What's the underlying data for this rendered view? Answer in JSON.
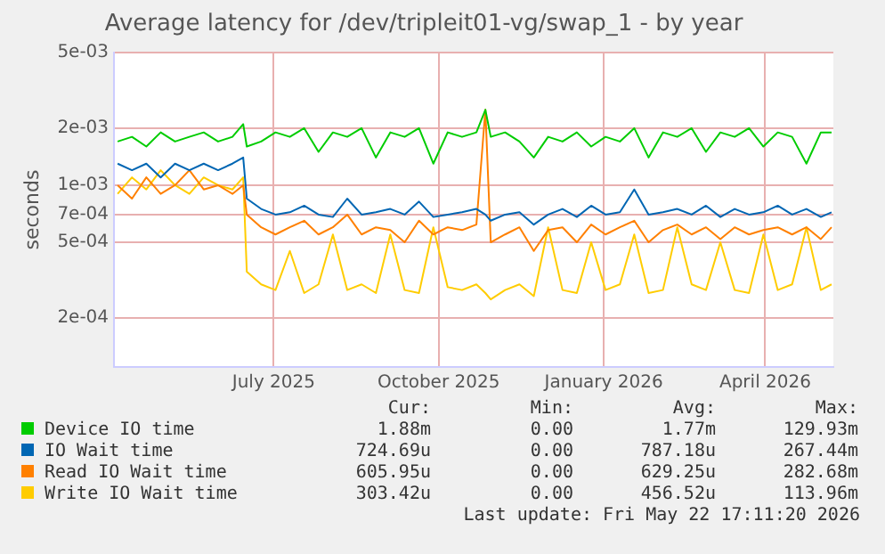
{
  "chart_data": {
    "type": "line",
    "title": "Average latency for /dev/tripleit01-vg/swap_1 - by year",
    "ylabel": "seconds",
    "x": [
      "2025-04-05",
      "2025-04-13",
      "2025-04-21",
      "2025-04-29",
      "2025-05-07",
      "2025-05-15",
      "2025-05-23",
      "2025-05-31",
      "2025-06-08",
      "2025-06-14",
      "2025-06-16",
      "2025-06-24",
      "2025-07-02",
      "2025-07-10",
      "2025-07-18",
      "2025-07-26",
      "2025-08-03",
      "2025-08-11",
      "2025-08-19",
      "2025-08-27",
      "2025-09-04",
      "2025-09-12",
      "2025-09-20",
      "2025-09-28",
      "2025-10-06",
      "2025-10-14",
      "2025-10-22",
      "2025-10-27",
      "2025-10-30",
      "2025-11-07",
      "2025-11-15",
      "2025-11-23",
      "2025-12-01",
      "2025-12-09",
      "2025-12-17",
      "2025-12-25",
      "2026-01-02",
      "2026-01-10",
      "2026-01-18",
      "2026-01-26",
      "2026-02-03",
      "2026-02-11",
      "2026-02-19",
      "2026-02-27",
      "2026-03-07",
      "2026-03-15",
      "2026-03-23",
      "2026-03-31",
      "2026-04-08",
      "2026-04-16",
      "2026-04-24",
      "2026-05-02",
      "2026-05-08"
    ],
    "series": [
      {
        "name": "Device IO time",
        "color": "#00cc00",
        "values": [
          0.0017,
          0.0018,
          0.0016,
          0.0019,
          0.0017,
          0.0018,
          0.0019,
          0.0017,
          0.0018,
          0.0021,
          0.0016,
          0.0017,
          0.0019,
          0.0018,
          0.002,
          0.0015,
          0.0019,
          0.0018,
          0.002,
          0.0014,
          0.0019,
          0.0018,
          0.002,
          0.0013,
          0.0019,
          0.0018,
          0.0019,
          0.0025,
          0.0018,
          0.0019,
          0.0017,
          0.0014,
          0.0018,
          0.0017,
          0.0019,
          0.0016,
          0.0018,
          0.0017,
          0.002,
          0.0014,
          0.0019,
          0.0018,
          0.002,
          0.0015,
          0.0019,
          0.0018,
          0.002,
          0.0016,
          0.0019,
          0.0018,
          0.0013,
          0.0019,
          0.0019
        ]
      },
      {
        "name": "IO Wait time",
        "color": "#0066b3",
        "values": [
          0.0013,
          0.0012,
          0.0013,
          0.0011,
          0.0013,
          0.0012,
          0.0013,
          0.0012,
          0.0013,
          0.0014,
          0.00085,
          0.00075,
          0.0007,
          0.00072,
          0.00078,
          0.0007,
          0.00068,
          0.00085,
          0.0007,
          0.00072,
          0.00075,
          0.0007,
          0.00082,
          0.00068,
          0.0007,
          0.00072,
          0.00075,
          0.0007,
          0.00065,
          0.0007,
          0.00072,
          0.00062,
          0.0007,
          0.00075,
          0.00068,
          0.00078,
          0.0007,
          0.00072,
          0.00095,
          0.0007,
          0.00072,
          0.00075,
          0.0007,
          0.00078,
          0.00068,
          0.00075,
          0.0007,
          0.00072,
          0.00078,
          0.0007,
          0.00075,
          0.00068,
          0.00072
        ]
      },
      {
        "name": "Read IO Wait time",
        "color": "#ff8000",
        "values": [
          0.001,
          0.00085,
          0.0011,
          0.0009,
          0.001,
          0.0012,
          0.00095,
          0.001,
          0.0009,
          0.001,
          0.0007,
          0.0006,
          0.00055,
          0.0006,
          0.00065,
          0.00055,
          0.0006,
          0.0007,
          0.00055,
          0.0006,
          0.00058,
          0.0005,
          0.00065,
          0.00055,
          0.0006,
          0.00058,
          0.00062,
          0.0025,
          0.0005,
          0.00055,
          0.0006,
          0.00045,
          0.00058,
          0.0006,
          0.0005,
          0.00062,
          0.00055,
          0.0006,
          0.00065,
          0.0005,
          0.00058,
          0.00062,
          0.00055,
          0.0006,
          0.00052,
          0.0006,
          0.00055,
          0.00058,
          0.0006,
          0.00055,
          0.0006,
          0.00052,
          0.0006
        ]
      },
      {
        "name": "Write IO Wait time",
        "color": "#ffcc00",
        "values": [
          0.0009,
          0.0011,
          0.00095,
          0.0012,
          0.001,
          0.0009,
          0.0011,
          0.001,
          0.00095,
          0.0011,
          0.00035,
          0.0003,
          0.00028,
          0.00045,
          0.00027,
          0.0003,
          0.00055,
          0.00028,
          0.0003,
          0.00027,
          0.00055,
          0.00028,
          0.00027,
          0.0006,
          0.00029,
          0.00028,
          0.0003,
          0.00027,
          0.00025,
          0.00028,
          0.0003,
          0.00026,
          0.0006,
          0.00028,
          0.00027,
          0.0005,
          0.00028,
          0.0003,
          0.00055,
          0.00027,
          0.00028,
          0.0006,
          0.0003,
          0.00028,
          0.0005,
          0.00028,
          0.00027,
          0.00055,
          0.00028,
          0.0003,
          0.0006,
          0.00028,
          0.0003
        ]
      }
    ],
    "xlim": [
      "2025-04-03",
      "2026-05-09"
    ],
    "xticks": [
      {
        "value": "2025-07-01",
        "label": "July 2025"
      },
      {
        "value": "2025-10-01",
        "label": "October 2025"
      },
      {
        "value": "2026-01-01",
        "label": "January 2026"
      },
      {
        "value": "2026-04-01",
        "label": "April 2026"
      }
    ],
    "ylim": [
      0.00011,
      0.005
    ],
    "yticks": [
      {
        "value": 0.0002,
        "label": "2e-04"
      },
      {
        "value": 0.0005,
        "label": "5e-04"
      },
      {
        "value": 0.0007,
        "label": "7e-04"
      },
      {
        "value": 0.001,
        "label": "1e-03"
      },
      {
        "value": 0.002,
        "label": "2e-03"
      },
      {
        "value": 0.005,
        "label": "5e-03"
      }
    ],
    "log": "y",
    "grid": true,
    "legend": "bottom",
    "annotations": [
      "Cur:",
      "Min:",
      "Avg:",
      "Max:",
      "1.88m",
      "0.00",
      "1.77m",
      "129.93m",
      "724.69u",
      "0.00",
      "787.18u",
      "267.44m",
      "605.95u",
      "0.00",
      "629.25u",
      "282.68m",
      "303.42u",
      "0.00",
      "456.52u",
      "113.96m",
      "Last update: Fri May 22 17:11:20 2026"
    ]
  }
}
